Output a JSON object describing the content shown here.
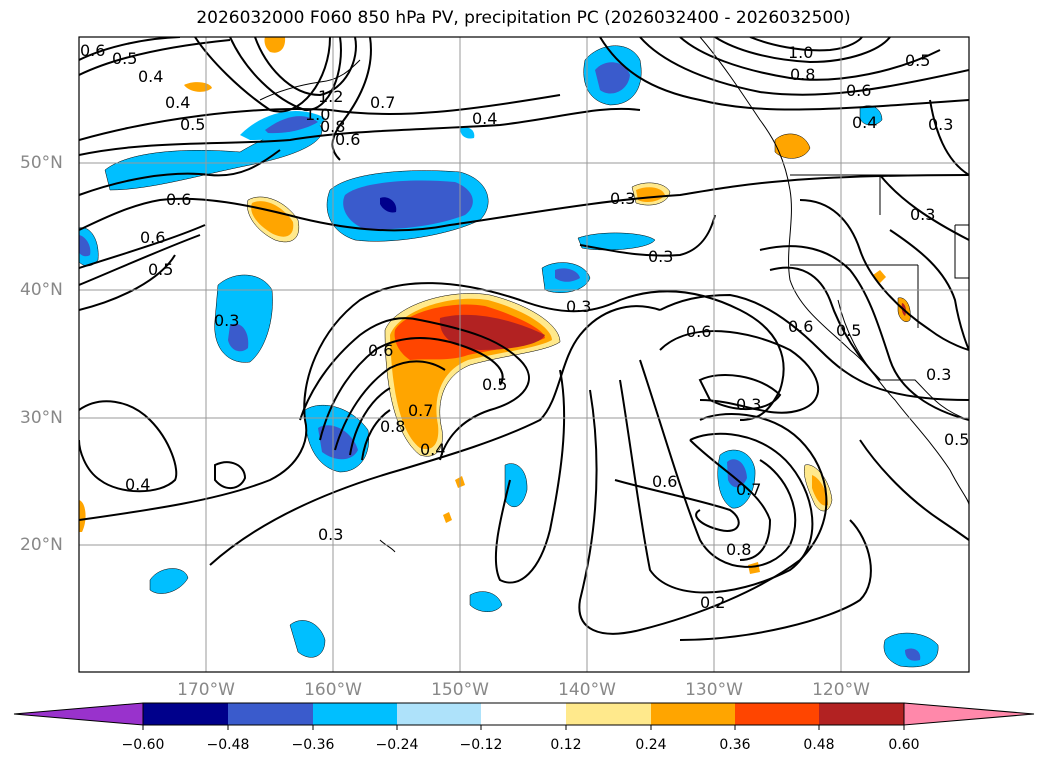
{
  "title": "2026032000 F060 850 hPa PV, precipitation PC (2026032400 - 2026032500)",
  "map": {
    "projection": "cylindrical",
    "lon_range": [
      -180,
      -110
    ],
    "lat_range": [
      10,
      60
    ],
    "gridlines": true,
    "lon_ticks": [
      "170°W",
      "160°W",
      "150°W",
      "140°W",
      "130°W",
      "120°W"
    ],
    "lat_ticks": [
      "20°N",
      "30°N",
      "40°N",
      "50°N"
    ],
    "pv_contour_labels": [
      "0.6",
      "0.5",
      "0.4",
      "0.4",
      "0.5",
      "1.2",
      "1.0",
      "0.8",
      "0.7",
      "0.6",
      "0.4",
      "0.6",
      "0.3",
      "1.0",
      "0.8",
      "0.6",
      "0.5",
      "0.4",
      "0.3",
      "0.3",
      "0.6",
      "0.5",
      "0.3",
      "0.3",
      "0.6",
      "0.6",
      "0.5",
      "0.3",
      "0.6",
      "0.8",
      "0.7",
      "0.5",
      "0.4",
      "0.3",
      "0.4",
      "0.3",
      "0.6",
      "0.7",
      "0.8",
      "0.2",
      "0.3",
      "0.5"
    ]
  },
  "colorbar": {
    "ticks": [
      "−0.60",
      "−0.48",
      "−0.36",
      "−0.24",
      "−0.12",
      "0.12",
      "0.24",
      "0.36",
      "0.48",
      "0.60"
    ],
    "colors": [
      "#9932cc",
      "#00008b",
      "#3a5bcc",
      "#00bfff",
      "#aee2fa",
      "#ffffff",
      "#ffe98c",
      "#ffa500",
      "#ff4500",
      "#b22222",
      "#ff88aa"
    ],
    "extend": "both"
  }
}
